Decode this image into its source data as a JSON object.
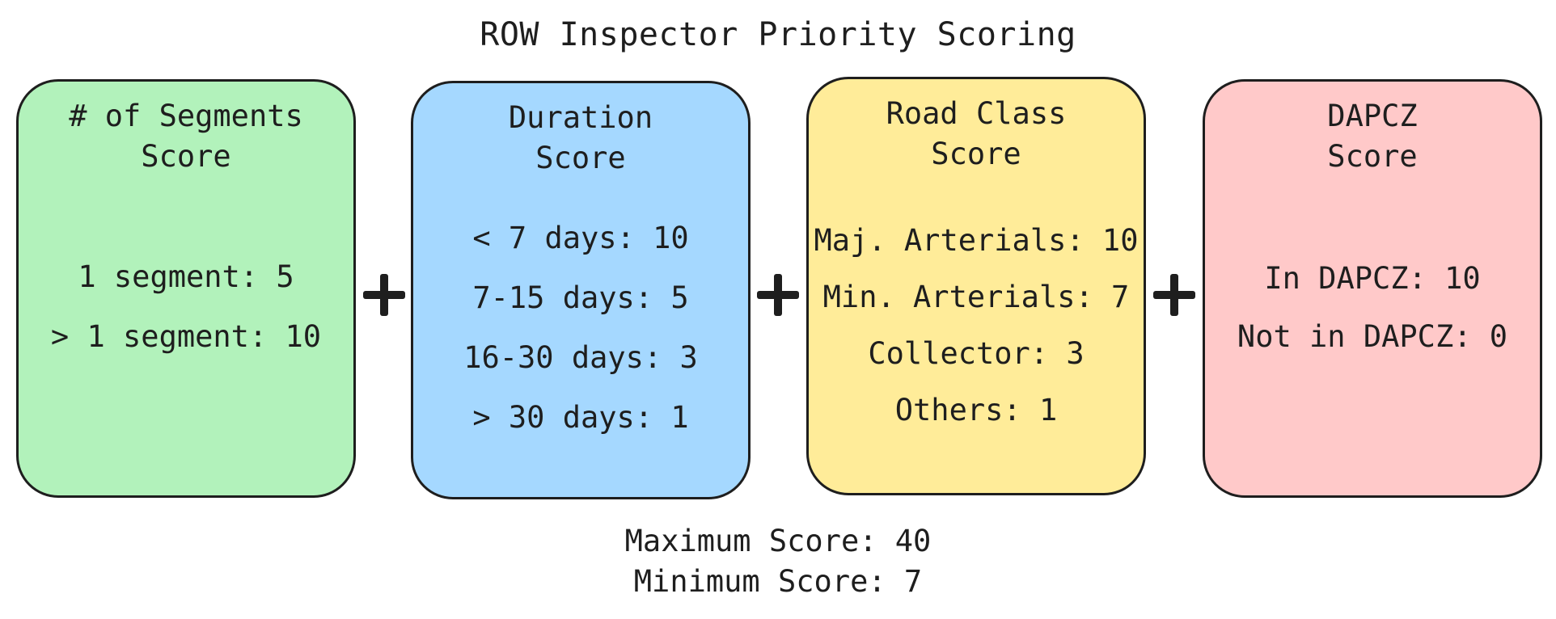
{
  "title": "ROW Inspector Priority Scoring",
  "cards": [
    {
      "heading_line1": "# of Segments",
      "heading_line2": "Score",
      "fill": "#b2f2bb",
      "rules": [
        "1 segment: 5",
        "> 1 segment: 10"
      ]
    },
    {
      "heading_line1": "Duration",
      "heading_line2": "Score",
      "fill": "#a5d8ff",
      "rules": [
        "< 7 days: 10",
        "7-15 days: 5",
        "16-30 days: 3",
        "> 30 days: 1"
      ]
    },
    {
      "heading_line1": "Road Class",
      "heading_line2": "Score",
      "fill": "#ffec99",
      "rules": [
        "Maj. Arterials: 10",
        "Min. Arterials: 7",
        "Collector: 3",
        "Others: 1"
      ]
    },
    {
      "heading_line1": "DAPCZ",
      "heading_line2": "Score",
      "fill": "#ffc9c9",
      "rules": [
        "In DAPCZ: 10",
        "Not in DAPCZ: 0"
      ]
    }
  ],
  "footer": {
    "max_label": "Maximum Score: 40",
    "min_label": "Minimum Score: 7"
  }
}
